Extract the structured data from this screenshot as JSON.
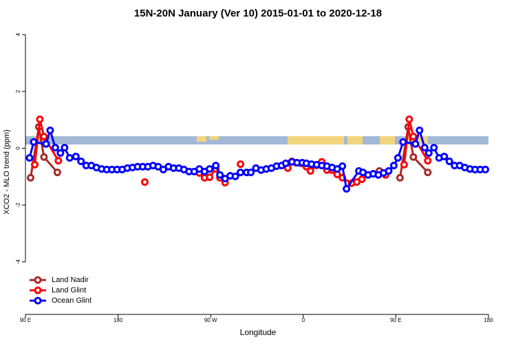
{
  "chart_data": {
    "type": "line",
    "title": "15N-20N January (Ver 10)   2015-01-01 to 2020-12-18",
    "x_label": "Longitude",
    "y_label": "XCO2 - MLO trend (ppm)",
    "xlim": [
      90,
      540
    ],
    "ylim": [
      -5.85,
      4.25
    ],
    "xticks": [
      {
        "value": 90,
        "label": "90 E"
      },
      {
        "value": 180,
        "label": "180"
      },
      {
        "value": 270,
        "label": "90 W"
      },
      {
        "value": 360,
        "label": "0"
      },
      {
        "value": 450,
        "label": "90 E"
      },
      {
        "value": 540,
        "label": "180"
      }
    ],
    "yticks": [
      -4,
      -2,
      0,
      2,
      4
    ],
    "legend": "bottom-left",
    "series": [
      {
        "name": "Land Nadir",
        "color": "#a52a2a",
        "x": [
          95,
          103,
          108,
          121,
          300,
          434,
          444,
          454,
          462,
          467,
          481
        ],
        "values": [
          -1.04,
          0.75,
          -0.31,
          -0.85,
          null,
          -0.8,
          null,
          -1.04,
          0.75,
          -0.31,
          -0.85
        ]
      },
      {
        "name": "Land Glint",
        "color": "#ff0000",
        "x": [
          99,
          104,
          108,
          122,
          160,
          206,
          230,
          259,
          264,
          269,
          275,
          279,
          284,
          290,
          299,
          320,
          345,
          349,
          353,
          358,
          363,
          367,
          373,
          378,
          383,
          388,
          393,
          398,
          407,
          412,
          417,
          430,
          440,
          450,
          458,
          463,
          467,
          481
        ],
        "values": [
          -0.58,
          1.02,
          0.41,
          -0.44,
          null,
          -1.19,
          null,
          -0.87,
          -1.04,
          -1.02,
          -0.73,
          -1.04,
          -1.21,
          null,
          -0.56,
          null,
          -0.7,
          -0.46,
          -0.51,
          -0.53,
          -0.65,
          -0.8,
          -0.6,
          -0.48,
          -0.77,
          -0.77,
          -0.92,
          -1.04,
          -1.23,
          -1.19,
          -1.09,
          null,
          -0.94,
          null,
          -0.58,
          1.02,
          0.41,
          -0.44
        ]
      },
      {
        "name": "Ocean Glint",
        "color": "#0000ff",
        "x": [
          94,
          98,
          110,
          114,
          119,
          124,
          128,
          133,
          139,
          144,
          149,
          154,
          159,
          164,
          169,
          174,
          179,
          184,
          189,
          194,
          199,
          204,
          209,
          214,
          219,
          224,
          229,
          234,
          239,
          244,
          249,
          254,
          259,
          264,
          269,
          275,
          279,
          284,
          289,
          294,
          299,
          305,
          309,
          314,
          319,
          324,
          329,
          334,
          339,
          343,
          349,
          354,
          359,
          363,
          368,
          373,
          378,
          383,
          388,
          393,
          398,
          402,
          414,
          418,
          423,
          428,
          433,
          438,
          443,
          448,
          452,
          457,
          469,
          473,
          478,
          482,
          487,
          492,
          497,
          502,
          507,
          512,
          517,
          522,
          527,
          532,
          537
        ],
        "values": [
          -0.34,
          0.22,
          0.15,
          0.63,
          0.02,
          -0.17,
          0.02,
          -0.34,
          -0.29,
          -0.46,
          -0.61,
          -0.61,
          -0.68,
          -0.73,
          -0.75,
          -0.75,
          -0.75,
          -0.75,
          -0.7,
          -0.68,
          -0.65,
          -0.65,
          -0.65,
          -0.61,
          -0.65,
          -0.75,
          -0.65,
          -0.7,
          -0.7,
          -0.75,
          -0.82,
          -0.82,
          -0.73,
          -0.82,
          -0.73,
          -0.61,
          -0.94,
          -1.07,
          -0.97,
          -0.99,
          -0.85,
          -0.85,
          -0.85,
          -0.7,
          -0.77,
          -0.73,
          -0.7,
          -0.63,
          -0.61,
          -0.53,
          -0.48,
          -0.51,
          -0.51,
          -0.53,
          -0.56,
          -0.58,
          -0.61,
          -0.63,
          -0.68,
          -0.73,
          -0.63,
          -1.43,
          -0.8,
          -0.85,
          -0.94,
          -0.9,
          -0.94,
          -0.87,
          -0.8,
          -0.61,
          -0.34,
          0.22,
          0.15,
          0.63,
          0.02,
          -0.17,
          0.02,
          -0.34,
          -0.29,
          -0.46,
          -0.61,
          -0.61,
          -0.68,
          -0.73,
          -0.75,
          -0.75,
          -0.75
        ]
      }
    ]
  }
}
